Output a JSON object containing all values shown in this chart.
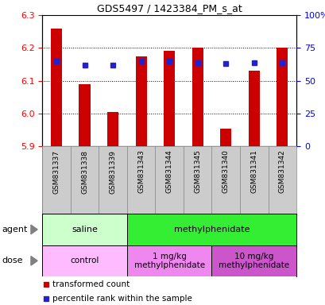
{
  "title": "GDS5497 / 1423384_PM_s_at",
  "samples": [
    "GSM831337",
    "GSM831338",
    "GSM831339",
    "GSM831343",
    "GSM831344",
    "GSM831345",
    "GSM831340",
    "GSM831341",
    "GSM831342"
  ],
  "bar_values": [
    6.26,
    6.09,
    6.005,
    6.175,
    6.192,
    6.2,
    5.955,
    6.13,
    6.2
  ],
  "percentile_values": [
    65,
    62,
    62,
    65,
    65,
    64,
    63,
    64,
    64
  ],
  "ylim_left": [
    5.9,
    6.3
  ],
  "ylim_right": [
    0,
    100
  ],
  "yticks_left": [
    5.9,
    6.0,
    6.1,
    6.2,
    6.3
  ],
  "yticks_right": [
    0,
    25,
    50,
    75,
    100
  ],
  "ytick_labels_right": [
    "0",
    "25",
    "50",
    "75",
    "100%"
  ],
  "bar_color": "#cc0000",
  "dot_color": "#2222cc",
  "bar_bottom": 5.9,
  "agent_groups": [
    {
      "label": "saline",
      "start": 0,
      "end": 3,
      "color": "#ccffcc"
    },
    {
      "label": "methylphenidate",
      "start": 3,
      "end": 9,
      "color": "#33ee33"
    }
  ],
  "dose_groups": [
    {
      "label": "control",
      "start": 0,
      "end": 3,
      "color": "#ffbbff"
    },
    {
      "label": "1 mg/kg\nmethylphenidate",
      "start": 3,
      "end": 6,
      "color": "#ee88ee"
    },
    {
      "label": "10 mg/kg\nmethylphenidate",
      "start": 6,
      "end": 9,
      "color": "#cc55cc"
    }
  ],
  "legend_items": [
    {
      "color": "#cc0000",
      "label": "transformed count"
    },
    {
      "color": "#2222cc",
      "label": "percentile rank within the sample"
    }
  ],
  "bg_color": "#ffffff",
  "tick_label_area_color": "#cccccc",
  "bar_width": 0.4
}
